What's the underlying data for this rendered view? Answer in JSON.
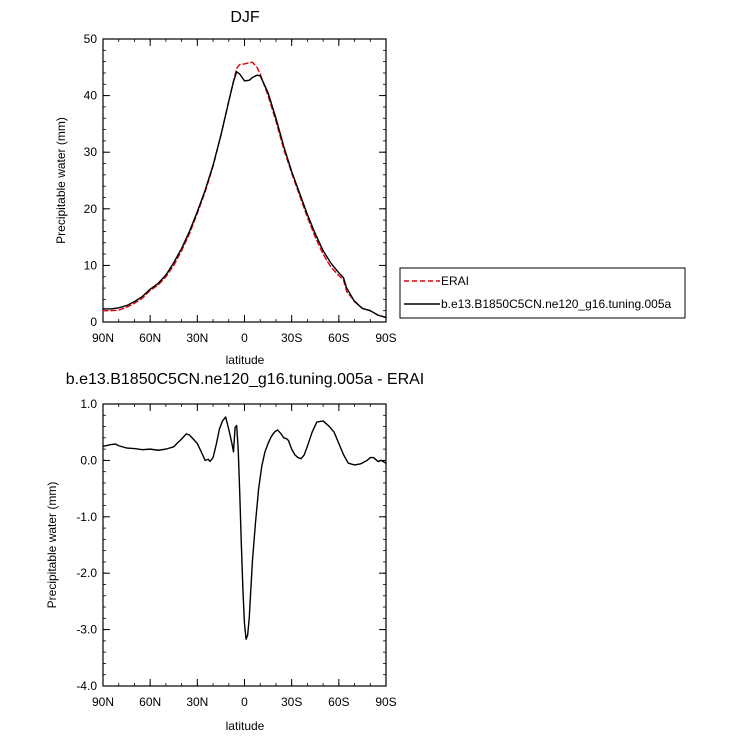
{
  "chart_data": [
    {
      "type": "line",
      "title": "DJF",
      "xlabel": "latitude",
      "ylabel": "Precipitable water (mm)",
      "xlim": [
        90,
        -90
      ],
      "ylim": [
        0,
        50
      ],
      "xticks": [
        {
          "value": 90,
          "label": "90N"
        },
        {
          "value": 60,
          "label": "60N"
        },
        {
          "value": 30,
          "label": "30N"
        },
        {
          "value": 0,
          "label": "0"
        },
        {
          "value": -30,
          "label": "30S"
        },
        {
          "value": -60,
          "label": "60S"
        },
        {
          "value": -90,
          "label": "90S"
        }
      ],
      "yticks": [
        {
          "value": 0,
          "label": "0"
        },
        {
          "value": 10,
          "label": "10"
        },
        {
          "value": 20,
          "label": "20"
        },
        {
          "value": 30,
          "label": "30"
        },
        {
          "value": 40,
          "label": "40"
        },
        {
          "value": 50,
          "label": "50"
        }
      ],
      "legend_position": "right",
      "series": [
        {
          "name": "ERAI",
          "color": "#e0000a",
          "dash": "dashed",
          "x": [
            90,
            85,
            80,
            75,
            70,
            65,
            60,
            55,
            50,
            45,
            40,
            35,
            30,
            25,
            20,
            15,
            10,
            7,
            5,
            3,
            0,
            -3,
            -5,
            -8,
            -10,
            -15,
            -20,
            -25,
            -30,
            -35,
            -40,
            -45,
            -50,
            -55,
            -60,
            -63,
            -65,
            -70,
            -75,
            -80,
            -85,
            -90
          ],
          "y": [
            2.0,
            2.0,
            2.1,
            2.6,
            3.3,
            4.2,
            5.6,
            6.5,
            8.0,
            10.0,
            12.6,
            15.6,
            19.2,
            23.0,
            27.5,
            33.0,
            39.0,
            42.5,
            44.8,
            45.5,
            45.6,
            45.8,
            45.9,
            45.0,
            43.8,
            40.0,
            35.5,
            30.5,
            26.3,
            22.4,
            18.5,
            15.0,
            12.0,
            9.7,
            8.2,
            7.4,
            5.4,
            3.7,
            2.4,
            2.0,
            1.2,
            0.8
          ]
        },
        {
          "name": "b.e13.B1850C5CN.ne120_g16.tuning.005a",
          "color": "#000000",
          "dash": "solid",
          "x": [
            90,
            85,
            80,
            75,
            70,
            65,
            60,
            55,
            50,
            45,
            40,
            35,
            30,
            25,
            20,
            15,
            10,
            7,
            5,
            3,
            0,
            -3,
            -5,
            -8,
            -10,
            -15,
            -20,
            -25,
            -30,
            -35,
            -40,
            -45,
            -50,
            -55,
            -60,
            -63,
            -65,
            -70,
            -75,
            -80,
            -85,
            -90
          ],
          "y": [
            2.3,
            2.3,
            2.5,
            2.9,
            3.6,
            4.5,
            5.8,
            6.8,
            8.3,
            10.5,
            13.0,
            16.0,
            19.5,
            23.3,
            27.7,
            33.0,
            39.0,
            42.5,
            44.2,
            43.8,
            42.6,
            42.7,
            43.2,
            43.6,
            43.5,
            40.5,
            36.0,
            31.0,
            26.6,
            22.8,
            19.0,
            15.6,
            12.6,
            10.4,
            8.7,
            7.8,
            6.0,
            3.6,
            2.4,
            2.0,
            1.2,
            0.8
          ]
        }
      ]
    },
    {
      "type": "line",
      "title": "b.e13.B1850C5CN.ne120_g16.tuning.005a - ERAI",
      "xlabel": "latitude",
      "ylabel": "Precipitable water (mm)",
      "xlim": [
        90,
        -90
      ],
      "ylim": [
        -4,
        1
      ],
      "xticks": [
        {
          "value": 90,
          "label": "90N"
        },
        {
          "value": 60,
          "label": "60N"
        },
        {
          "value": 30,
          "label": "30N"
        },
        {
          "value": 0,
          "label": "0"
        },
        {
          "value": -30,
          "label": "30S"
        },
        {
          "value": -60,
          "label": "60S"
        },
        {
          "value": -90,
          "label": "90S"
        }
      ],
      "yticks": [
        {
          "value": 1,
          "label": "1.0"
        },
        {
          "value": 0,
          "label": "0.0"
        },
        {
          "value": -1,
          "label": "-1.0"
        },
        {
          "value": -2,
          "label": "-2.0"
        },
        {
          "value": -3,
          "label": "-3.0"
        },
        {
          "value": -4,
          "label": "-4.0"
        }
      ],
      "series": [
        {
          "color": "#000000",
          "dash": "solid",
          "x": [
            90,
            88,
            85,
            82,
            80,
            75,
            70,
            65,
            60,
            55,
            50,
            45,
            43,
            40,
            37,
            35,
            30,
            27,
            25,
            23,
            22,
            20,
            18,
            16,
            14,
            12,
            10,
            8,
            7,
            6,
            5,
            4,
            3,
            2,
            1,
            0,
            -1,
            -2,
            -3,
            -4,
            -5,
            -7,
            -9,
            -11,
            -13,
            -15,
            -17,
            -19,
            -21,
            -23,
            -25,
            -27,
            -28,
            -30,
            -32,
            -34,
            -36,
            -38,
            -40,
            -43,
            -46,
            -50,
            -54,
            -57,
            -60,
            -63,
            -66,
            -70,
            -74,
            -78,
            -80,
            -82,
            -85,
            -87,
            -90
          ],
          "y": [
            0.25,
            0.26,
            0.28,
            0.29,
            0.26,
            0.22,
            0.21,
            0.19,
            0.2,
            0.18,
            0.2,
            0.24,
            0.3,
            0.38,
            0.47,
            0.45,
            0.3,
            0.12,
            0.0,
            0.02,
            -0.02,
            0.05,
            0.28,
            0.55,
            0.7,
            0.77,
            0.55,
            0.3,
            0.15,
            0.58,
            0.62,
            0.2,
            -0.6,
            -1.5,
            -2.3,
            -2.9,
            -3.17,
            -3.1,
            -2.8,
            -2.3,
            -1.8,
            -1.1,
            -0.5,
            -0.1,
            0.15,
            0.3,
            0.42,
            0.5,
            0.54,
            0.48,
            0.4,
            0.38,
            0.35,
            0.2,
            0.1,
            0.05,
            0.03,
            0.1,
            0.25,
            0.5,
            0.68,
            0.7,
            0.6,
            0.5,
            0.3,
            0.1,
            -0.05,
            -0.08,
            -0.06,
            0.0,
            0.05,
            0.05,
            -0.02,
            0.0,
            -0.05
          ]
        }
      ]
    }
  ]
}
